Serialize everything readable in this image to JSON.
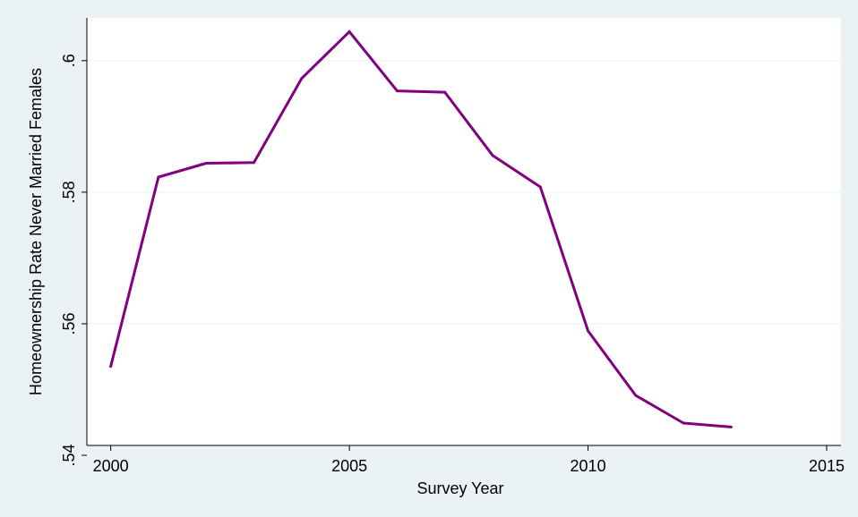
{
  "chart_data": {
    "type": "line",
    "title": "",
    "xlabel": "Survey Year",
    "ylabel": "Homeownership Rate  Never Married Females",
    "xlim": [
      1999.5,
      2015.3
    ],
    "ylim": [
      0.5415,
      0.6065
    ],
    "x_ticks": [
      2000,
      2005,
      2010,
      2015
    ],
    "x_tick_labels": [
      "2000",
      "2005",
      "2010",
      "2015"
    ],
    "y_ticks": [
      0.54,
      0.56,
      0.58,
      0.6
    ],
    "y_tick_labels": [
      ".54",
      ".56",
      ".58",
      ".6"
    ],
    "grid": true,
    "legend": "none",
    "series": [
      {
        "color": "#800080",
        "x": [
          2000,
          2001,
          2002,
          2003,
          2004,
          2005,
          2006,
          2007,
          2008,
          2009,
          2010,
          2011,
          2012,
          2013
        ],
        "y": [
          0.5535,
          0.5823,
          0.5844,
          0.5845,
          0.5973,
          0.6044,
          0.5954,
          0.5952,
          0.5856,
          0.5808,
          0.5589,
          0.5491,
          0.5449,
          0.5443
        ]
      }
    ]
  },
  "colors": {
    "background": "#eaf2f3",
    "plot_background": "#ffffff",
    "grid": "#eaf2f3",
    "line": "#800080"
  }
}
